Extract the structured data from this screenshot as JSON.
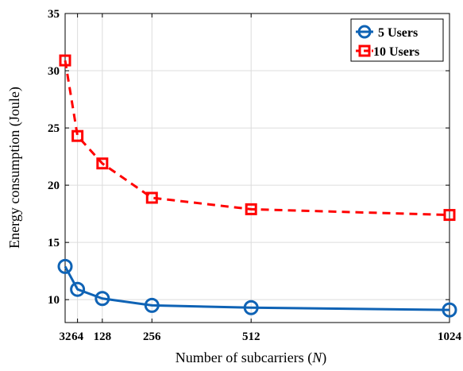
{
  "chart_data": {
    "type": "line",
    "xlabel": "Number of subcarriers",
    "xlabel_symbol": "N",
    "ylabel": "Energy consumption (Joule)",
    "x": [
      32,
      64,
      128,
      256,
      512,
      1024
    ],
    "x_tick_labels": [
      "32",
      "64",
      "128",
      "256",
      "512",
      "1024"
    ],
    "y_ticks": [
      10,
      15,
      20,
      25,
      30,
      35
    ],
    "ylim": [
      8,
      35
    ],
    "xlim": [
      32,
      1024
    ],
    "grid": true,
    "legend_position": "top-right",
    "series": [
      {
        "name": "5 Users",
        "values": [
          12.9,
          10.9,
          10.1,
          9.5,
          9.3,
          9.1
        ],
        "color": "#0f63b5",
        "line_style": "solid",
        "marker": "circle"
      },
      {
        "name": "10 Users",
        "values": [
          30.9,
          24.3,
          21.9,
          18.9,
          17.9,
          17.4
        ],
        "color": "#ff0000",
        "line_style": "dashed",
        "marker": "square"
      }
    ]
  }
}
